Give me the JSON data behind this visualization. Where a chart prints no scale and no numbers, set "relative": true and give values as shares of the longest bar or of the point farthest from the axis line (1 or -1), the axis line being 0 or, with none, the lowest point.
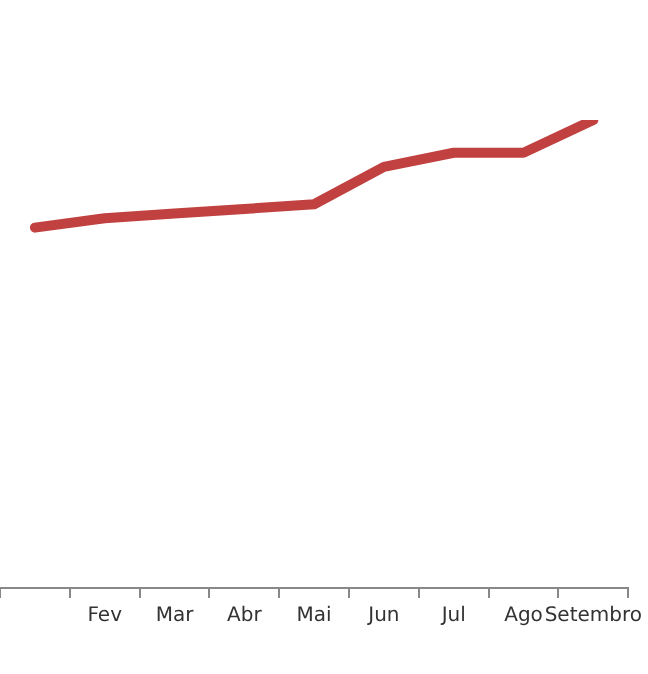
{
  "chart_data": {
    "type": "line",
    "relative": true,
    "categories": [
      null,
      "Fev",
      "Mar",
      "Abr",
      "Mai",
      "Jun",
      "Jul",
      "Ago",
      "Setembro"
    ],
    "series": [
      {
        "color": "#c0413f",
        "values": [
          0.77,
          0.79,
          0.8,
          0.81,
          0.82,
          0.9,
          0.93,
          0.93,
          1
        ]
      }
    ],
    "grid": false,
    "legend": false,
    "marker": "none"
  }
}
